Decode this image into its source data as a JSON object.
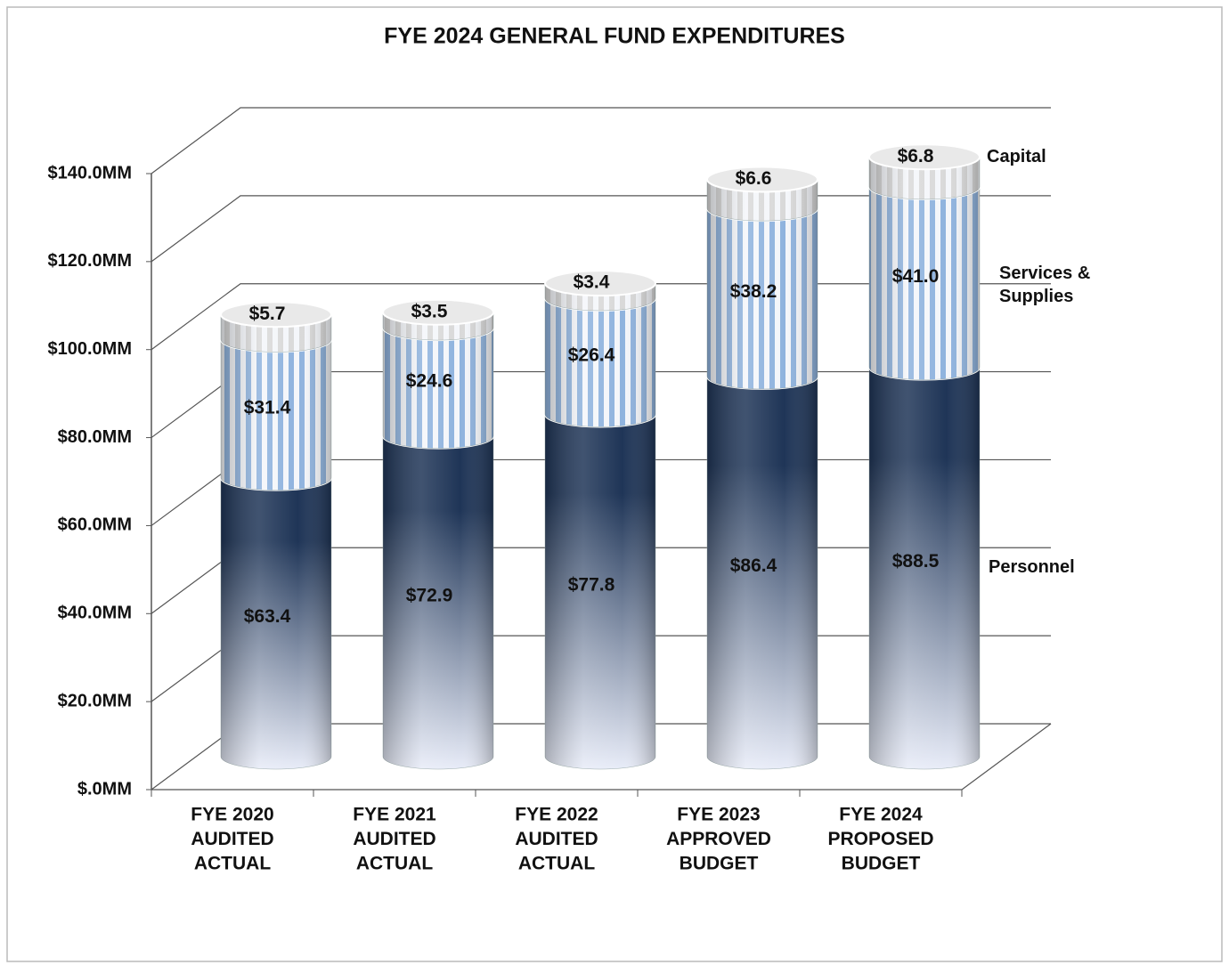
{
  "chart_data": {
    "type": "stacked-cylinder",
    "title": "FYE 2024  GENERAL  FUND  EXPENDITURES",
    "categories": [
      [
        "FYE 2020",
        "AUDITED",
        "ACTUAL"
      ],
      [
        "FYE 2021",
        "AUDITED",
        "ACTUAL"
      ],
      [
        "FYE 2022",
        "AUDITED",
        "ACTUAL"
      ],
      [
        "FYE 2023",
        "APPROVED",
        "BUDGET"
      ],
      [
        "FYE 2024",
        "PROPOSED",
        "BUDGET"
      ]
    ],
    "series": [
      {
        "name": "Personnel",
        "color": "#1f3557",
        "values": [
          63.4,
          72.9,
          77.8,
          86.4,
          88.5
        ],
        "value_labels": [
          "$63.4",
          "$72.9",
          "$77.8",
          "$86.4",
          "$88.5"
        ]
      },
      {
        "name": "Services & Supplies",
        "color": "#8fb3de",
        "values": [
          31.4,
          24.6,
          26.4,
          38.2,
          41.0
        ],
        "value_labels": [
          "$31.4",
          "$24.6",
          "$26.4",
          "$38.2",
          "$41.0"
        ]
      },
      {
        "name": "Capital",
        "color": "#d9d9d9",
        "values": [
          5.7,
          3.5,
          3.4,
          6.6,
          6.8
        ],
        "value_labels": [
          "$5.7",
          "$3.5",
          "$3.4",
          "$6.6",
          "$6.8"
        ]
      }
    ],
    "ylim": [
      0,
      140
    ],
    "yticks": [
      {
        "value": 0,
        "label": "$.0MM"
      },
      {
        "value": 20,
        "label": "$20.0MM"
      },
      {
        "value": 40,
        "label": "$40.0MM"
      },
      {
        "value": 60,
        "label": "$60.0MM"
      },
      {
        "value": 80,
        "label": "$80.0MM"
      },
      {
        "value": 100,
        "label": "$100.0MM"
      },
      {
        "value": 120,
        "label": "$120.0MM"
      },
      {
        "value": 140,
        "label": "$140.0MM"
      }
    ],
    "grid": true
  }
}
